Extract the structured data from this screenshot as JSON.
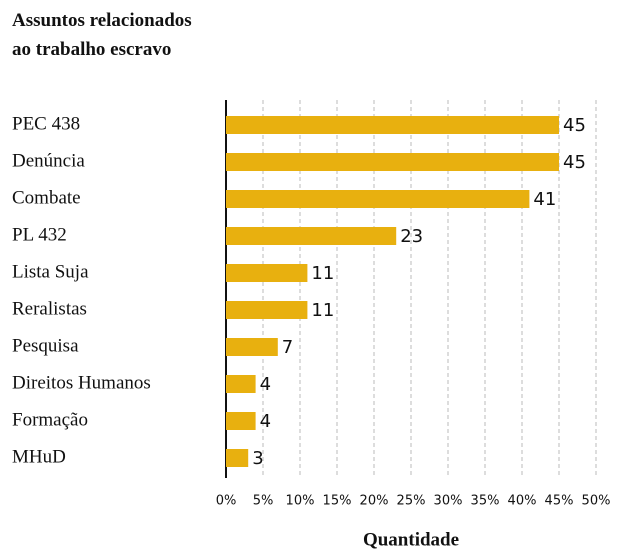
{
  "chart_data": {
    "type": "bar",
    "orientation": "horizontal",
    "title": "Assuntos relacionados ao trabalho escravo",
    "xlabel": "Quantidade",
    "categories": [
      "PEC 438",
      "Denúncia",
      "Combate",
      "PL 432",
      "Lista Suja",
      "Reralistas",
      "Pesquisa",
      "Direitos Humanos",
      "Formação",
      "MHuD"
    ],
    "values": [
      45,
      45,
      41,
      23,
      11,
      11,
      7,
      4,
      4,
      3
    ],
    "color": "#e8b00f",
    "xlim": [
      0,
      50
    ],
    "xticks": [
      {
        "value": 0,
        "label": "0%"
      },
      {
        "value": 5,
        "label": "5%"
      },
      {
        "value": 10,
        "label": "10%"
      },
      {
        "value": 15,
        "label": "15%"
      },
      {
        "value": 20,
        "label": "20%"
      },
      {
        "value": 25,
        "label": "25%"
      },
      {
        "value": 30,
        "label": "30%"
      },
      {
        "value": 35,
        "label": "35%"
      },
      {
        "value": 40,
        "label": "40%"
      },
      {
        "value": 45,
        "label": "45%"
      },
      {
        "value": 50,
        "label": "50%"
      }
    ],
    "grid": true
  }
}
